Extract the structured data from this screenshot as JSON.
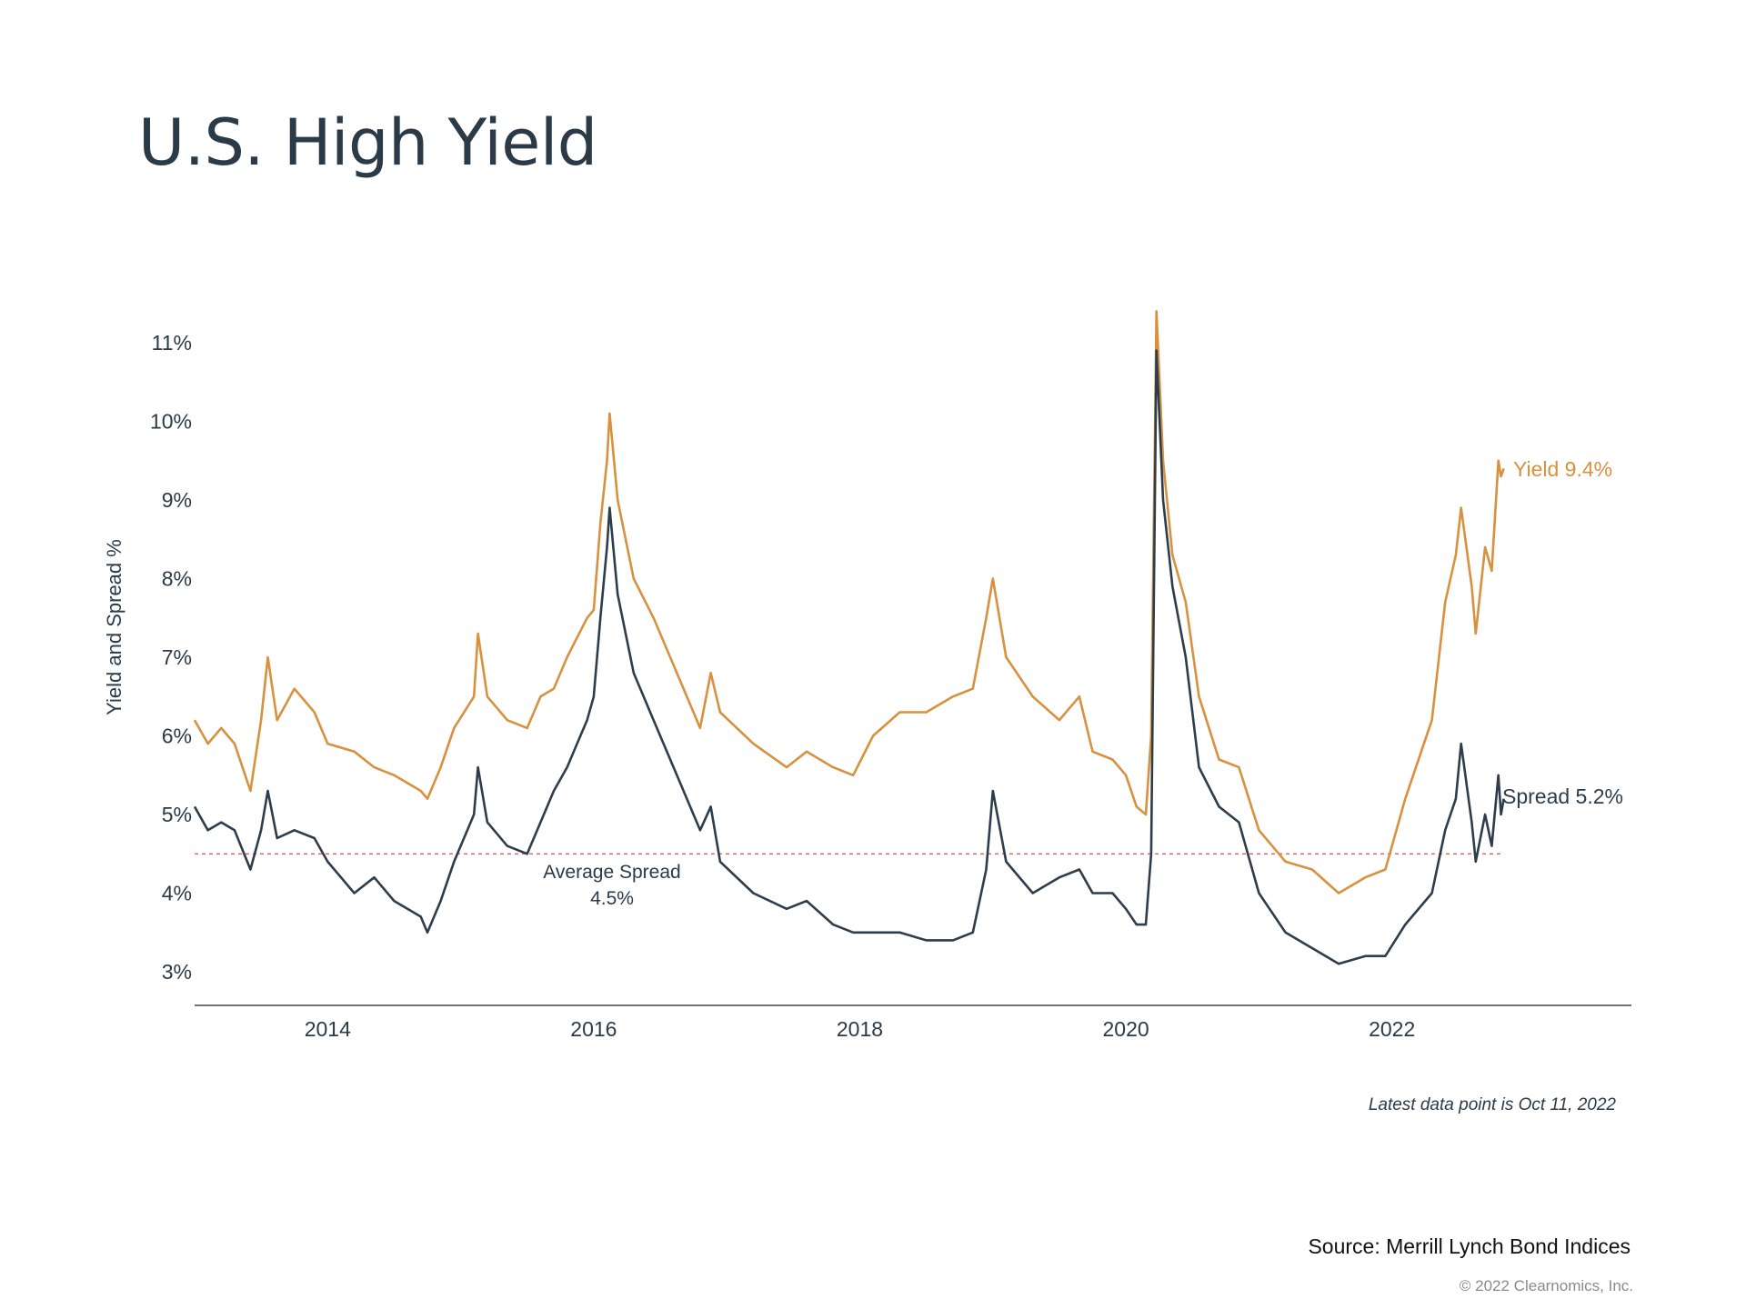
{
  "colors": {
    "yield": "#d8913f",
    "spread": "#2e3d4b",
    "average_line": "#d9534f",
    "axis": "#444444",
    "text": "#2b3a47"
  },
  "chart_data": {
    "type": "line",
    "title": "U.S. High Yield",
    "ylabel": "Yield and Spread %",
    "xlabel": "",
    "ylim": [
      3,
      11
    ],
    "xlim": [
      2013.0,
      2023.8
    ],
    "y_ticks": [
      "3%",
      "4%",
      "5%",
      "6%",
      "7%",
      "8%",
      "9%",
      "10%",
      "11%"
    ],
    "x_ticks": [
      "2014",
      "2016",
      "2018",
      "2020",
      "2022"
    ],
    "grid": false,
    "average_spread": {
      "value": 4.5,
      "label_line1": "Average Spread",
      "label_line2": "4.5%"
    },
    "series": [
      {
        "name": "Yield",
        "end_label": "Yield 9.4%",
        "points": [
          [
            2013.0,
            6.2
          ],
          [
            2013.1,
            5.9
          ],
          [
            2013.2,
            6.1
          ],
          [
            2013.3,
            5.9
          ],
          [
            2013.42,
            5.3
          ],
          [
            2013.5,
            6.2
          ],
          [
            2013.55,
            7.0
          ],
          [
            2013.62,
            6.2
          ],
          [
            2013.75,
            6.6
          ],
          [
            2013.9,
            6.3
          ],
          [
            2014.0,
            5.9
          ],
          [
            2014.2,
            5.8
          ],
          [
            2014.35,
            5.6
          ],
          [
            2014.5,
            5.5
          ],
          [
            2014.7,
            5.3
          ],
          [
            2014.75,
            5.2
          ],
          [
            2014.85,
            5.6
          ],
          [
            2014.95,
            6.1
          ],
          [
            2015.1,
            6.5
          ],
          [
            2015.13,
            7.3
          ],
          [
            2015.2,
            6.5
          ],
          [
            2015.35,
            6.2
          ],
          [
            2015.5,
            6.1
          ],
          [
            2015.6,
            6.5
          ],
          [
            2015.7,
            6.6
          ],
          [
            2015.8,
            7.0
          ],
          [
            2015.95,
            7.5
          ],
          [
            2016.0,
            7.6
          ],
          [
            2016.05,
            8.7
          ],
          [
            2016.1,
            9.5
          ],
          [
            2016.12,
            10.1
          ],
          [
            2016.18,
            9.0
          ],
          [
            2016.3,
            8.0
          ],
          [
            2016.45,
            7.5
          ],
          [
            2016.65,
            6.7
          ],
          [
            2016.8,
            6.1
          ],
          [
            2016.88,
            6.8
          ],
          [
            2016.95,
            6.3
          ],
          [
            2017.2,
            5.9
          ],
          [
            2017.45,
            5.6
          ],
          [
            2017.6,
            5.8
          ],
          [
            2017.8,
            5.6
          ],
          [
            2017.95,
            5.5
          ],
          [
            2018.1,
            6.0
          ],
          [
            2018.3,
            6.3
          ],
          [
            2018.5,
            6.3
          ],
          [
            2018.7,
            6.5
          ],
          [
            2018.85,
            6.6
          ],
          [
            2018.95,
            7.5
          ],
          [
            2019.0,
            8.0
          ],
          [
            2019.1,
            7.0
          ],
          [
            2019.3,
            6.5
          ],
          [
            2019.5,
            6.2
          ],
          [
            2019.65,
            6.5
          ],
          [
            2019.75,
            5.8
          ],
          [
            2019.9,
            5.7
          ],
          [
            2020.0,
            5.5
          ],
          [
            2020.08,
            5.1
          ],
          [
            2020.15,
            5.0
          ],
          [
            2020.19,
            6.0
          ],
          [
            2020.23,
            11.4
          ],
          [
            2020.28,
            9.5
          ],
          [
            2020.35,
            8.3
          ],
          [
            2020.45,
            7.7
          ],
          [
            2020.55,
            6.5
          ],
          [
            2020.7,
            5.7
          ],
          [
            2020.85,
            5.6
          ],
          [
            2021.0,
            4.8
          ],
          [
            2021.2,
            4.4
          ],
          [
            2021.4,
            4.3
          ],
          [
            2021.6,
            4.0
          ],
          [
            2021.8,
            4.2
          ],
          [
            2021.95,
            4.3
          ],
          [
            2022.1,
            5.2
          ],
          [
            2022.3,
            6.2
          ],
          [
            2022.4,
            7.7
          ],
          [
            2022.48,
            8.3
          ],
          [
            2022.52,
            8.9
          ],
          [
            2022.6,
            7.9
          ],
          [
            2022.63,
            7.3
          ],
          [
            2022.7,
            8.4
          ],
          [
            2022.75,
            8.1
          ],
          [
            2022.8,
            9.5
          ],
          [
            2022.82,
            9.3
          ],
          [
            2022.84,
            9.4
          ]
        ]
      },
      {
        "name": "Spread",
        "end_label": "Spread 5.2%",
        "points": [
          [
            2013.0,
            5.1
          ],
          [
            2013.1,
            4.8
          ],
          [
            2013.2,
            4.9
          ],
          [
            2013.3,
            4.8
          ],
          [
            2013.42,
            4.3
          ],
          [
            2013.5,
            4.8
          ],
          [
            2013.55,
            5.3
          ],
          [
            2013.62,
            4.7
          ],
          [
            2013.75,
            4.8
          ],
          [
            2013.9,
            4.7
          ],
          [
            2014.0,
            4.4
          ],
          [
            2014.2,
            4.0
          ],
          [
            2014.35,
            4.2
          ],
          [
            2014.5,
            3.9
          ],
          [
            2014.7,
            3.7
          ],
          [
            2014.75,
            3.5
          ],
          [
            2014.85,
            3.9
          ],
          [
            2014.95,
            4.4
          ],
          [
            2015.1,
            5.0
          ],
          [
            2015.13,
            5.6
          ],
          [
            2015.2,
            4.9
          ],
          [
            2015.35,
            4.6
          ],
          [
            2015.5,
            4.5
          ],
          [
            2015.6,
            4.9
          ],
          [
            2015.7,
            5.3
          ],
          [
            2015.8,
            5.6
          ],
          [
            2015.95,
            6.2
          ],
          [
            2016.0,
            6.5
          ],
          [
            2016.05,
            7.5
          ],
          [
            2016.1,
            8.4
          ],
          [
            2016.12,
            8.9
          ],
          [
            2016.18,
            7.8
          ],
          [
            2016.3,
            6.8
          ],
          [
            2016.45,
            6.2
          ],
          [
            2016.65,
            5.4
          ],
          [
            2016.8,
            4.8
          ],
          [
            2016.88,
            5.1
          ],
          [
            2016.95,
            4.4
          ],
          [
            2017.2,
            4.0
          ],
          [
            2017.45,
            3.8
          ],
          [
            2017.6,
            3.9
          ],
          [
            2017.8,
            3.6
          ],
          [
            2017.95,
            3.5
          ],
          [
            2018.1,
            3.5
          ],
          [
            2018.3,
            3.5
          ],
          [
            2018.5,
            3.4
          ],
          [
            2018.7,
            3.4
          ],
          [
            2018.85,
            3.5
          ],
          [
            2018.95,
            4.3
          ],
          [
            2019.0,
            5.3
          ],
          [
            2019.1,
            4.4
          ],
          [
            2019.3,
            4.0
          ],
          [
            2019.5,
            4.2
          ],
          [
            2019.65,
            4.3
          ],
          [
            2019.75,
            4.0
          ],
          [
            2019.9,
            4.0
          ],
          [
            2020.0,
            3.8
          ],
          [
            2020.08,
            3.6
          ],
          [
            2020.15,
            3.6
          ],
          [
            2020.19,
            4.5
          ],
          [
            2020.23,
            10.9
          ],
          [
            2020.28,
            9.0
          ],
          [
            2020.35,
            7.9
          ],
          [
            2020.45,
            7.0
          ],
          [
            2020.55,
            5.6
          ],
          [
            2020.7,
            5.1
          ],
          [
            2020.85,
            4.9
          ],
          [
            2021.0,
            4.0
          ],
          [
            2021.2,
            3.5
          ],
          [
            2021.4,
            3.3
          ],
          [
            2021.6,
            3.1
          ],
          [
            2021.8,
            3.2
          ],
          [
            2021.95,
            3.2
          ],
          [
            2022.1,
            3.6
          ],
          [
            2022.3,
            4.0
          ],
          [
            2022.4,
            4.8
          ],
          [
            2022.48,
            5.2
          ],
          [
            2022.52,
            5.9
          ],
          [
            2022.6,
            4.9
          ],
          [
            2022.63,
            4.4
          ],
          [
            2022.7,
            5.0
          ],
          [
            2022.75,
            4.6
          ],
          [
            2022.8,
            5.5
          ],
          [
            2022.82,
            5.0
          ],
          [
            2022.84,
            5.2
          ]
        ]
      }
    ],
    "annotation_latest": "Latest data point is Oct 11, 2022"
  },
  "footer": {
    "source": "Source: Merrill Lynch Bond Indices",
    "copyright": "© 2022 Clearnomics, Inc."
  }
}
